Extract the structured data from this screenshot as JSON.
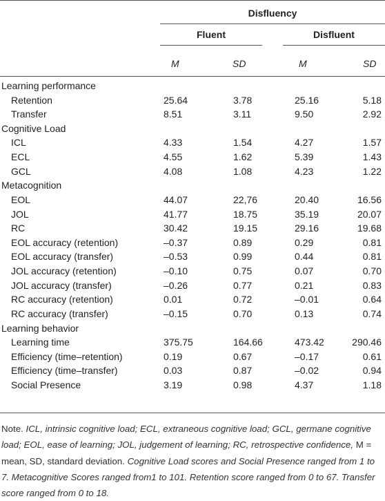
{
  "table": {
    "header": {
      "group": "Disfluency",
      "conditions": [
        "Fluent",
        "Disfluent"
      ],
      "stats": [
        "M",
        "SD",
        "M",
        "SD"
      ]
    },
    "sections": [
      {
        "title": "Learning performance",
        "rows": [
          {
            "label": "Retention",
            "values": [
              "25.64",
              "3.78",
              "25.16",
              "5.18"
            ]
          },
          {
            "label": "Transfer",
            "values": [
              "8.51",
              "3.11",
              "9.50",
              "2.92"
            ]
          }
        ]
      },
      {
        "title": "Cognitive Load",
        "rows": [
          {
            "label": "ICL",
            "values": [
              "4.33",
              "1.54",
              "4.27",
              "1.57"
            ]
          },
          {
            "label": "ECL",
            "values": [
              "4.55",
              "1.62",
              "5.39",
              "1.43"
            ]
          },
          {
            "label": "GCL",
            "values": [
              "4.08",
              "1.08",
              "4.23",
              "1.22"
            ]
          }
        ]
      },
      {
        "title": "Metacognition",
        "rows": [
          {
            "label": "EOL",
            "values": [
              "44.07",
              "22,76",
              "20.40",
              "16.56"
            ]
          },
          {
            "label": "JOL",
            "values": [
              "41.77",
              "18.75",
              "35.19",
              "20.07"
            ]
          },
          {
            "label": "RC",
            "values": [
              "30.42",
              "19.15",
              "29.16",
              "19.68"
            ]
          },
          {
            "label": "EOL accuracy (retention)",
            "values": [
              "–0.37",
              "0.89",
              "0.29",
              "0.81"
            ]
          },
          {
            "label": "EOL accuracy (transfer)",
            "values": [
              "–0.53",
              "0.99",
              "0.44",
              "0.81"
            ]
          },
          {
            "label": "JOL accuracy (retention)",
            "values": [
              "–0.10",
              "0.75",
              "0.07",
              "0.70"
            ]
          },
          {
            "label": "JOL accuracy (transfer)",
            "values": [
              "–0.26",
              "0.77",
              "0.21",
              "0.83"
            ]
          },
          {
            "label": "RC accuracy (retention)",
            "values": [
              "0.01",
              "0.72",
              "–0.01",
              "0.64"
            ]
          },
          {
            "label": "RC accuracy (transfer)",
            "values": [
              "–0.15",
              "0.70",
              "0.13",
              "0.74"
            ]
          }
        ]
      },
      {
        "title": "Learning behavior",
        "rows": [
          {
            "label": "Learning time",
            "values": [
              "375.75",
              "164.66",
              "473.42",
              "290.46"
            ]
          },
          {
            "label": "Efficiency (time–retention)",
            "values": [
              "0.19",
              "0.67",
              "–0.17",
              "0.61"
            ]
          },
          {
            "label": "Efficiency (time–transfer)",
            "values": [
              "0.03",
              "0.87",
              "–0.02",
              "0.94"
            ]
          },
          {
            "label": "Social Presence",
            "values": [
              "3.19",
              "0.98",
              "4.37",
              "1.18"
            ]
          }
        ]
      }
    ],
    "note": [
      "Note.",
      "ICL, intrinsic cognitive load; ECL, extraneous cognitive load; GCL, germane cognitive load; EOL, ease of learning; JOL, judgement of learning; RC, retrospective confidence,",
      "M = mean, SD, standard deviation.",
      "Cognitive Load scores and Social Presence ranged from 1 to 7. Metacognitive Scores ranged from1 to 101. Retention score ranged from 0 to 67. Transfer score ranged from 0 to 18."
    ]
  }
}
